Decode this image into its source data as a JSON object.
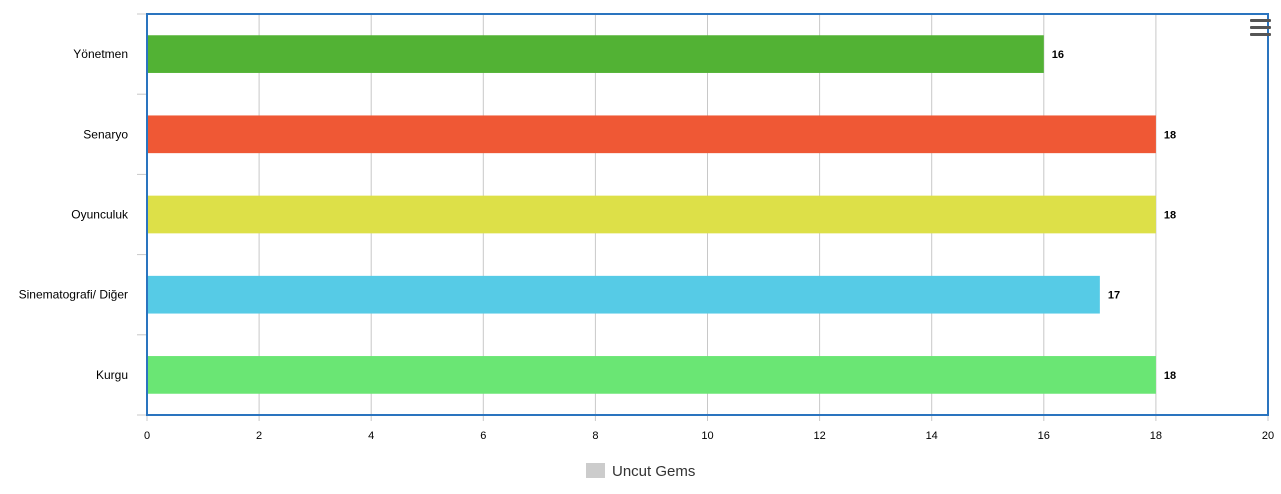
{
  "chart_data": {
    "type": "bar",
    "orientation": "horizontal",
    "categories": [
      "Yönetmen",
      "Senaryo",
      "Oyunculuk",
      "Sinematografi/ Diğer",
      "Kurgu"
    ],
    "series": [
      {
        "name": "Uncut Gems",
        "values": [
          16,
          18,
          18,
          17,
          18
        ]
      }
    ],
    "bar_colors": [
      "#52b234",
      "#ef5835",
      "#dde048",
      "#56cbe6",
      "#6ae674"
    ],
    "legend_swatch_color": "#cccccc",
    "xlim": [
      0,
      20
    ],
    "x_ticks": [
      0,
      2,
      4,
      6,
      8,
      10,
      12,
      14,
      16,
      18,
      20
    ],
    "grid": true,
    "legend_position": "bottom-center",
    "data_labels": true
  },
  "menu": {
    "icon": "hamburger-menu-icon"
  }
}
